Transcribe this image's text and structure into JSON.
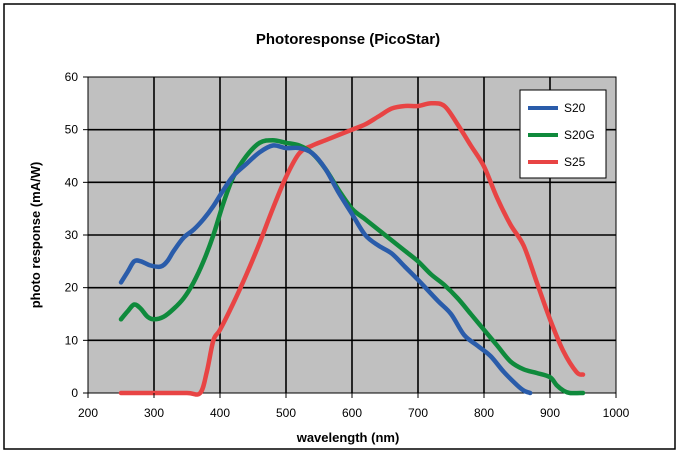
{
  "chart_data": {
    "type": "line",
    "title": "Photoresponse (PicoStar)",
    "xlabel": "wavelength (nm)",
    "ylabel": "photo response (mA/W)",
    "xlim": [
      200,
      1000
    ],
    "ylim": [
      0,
      60
    ],
    "x_ticks": [
      200,
      300,
      400,
      500,
      600,
      700,
      800,
      900,
      1000
    ],
    "y_ticks": [
      0,
      10,
      20,
      30,
      40,
      50,
      60
    ],
    "grid": true,
    "legend_position": "top-right",
    "plot_background": "#c0c0c0",
    "series": [
      {
        "name": "S20",
        "color": "#2a5caa",
        "points": [
          [
            250,
            21
          ],
          [
            260,
            23
          ],
          [
            270,
            25
          ],
          [
            280,
            25
          ],
          [
            295,
            24.2
          ],
          [
            310,
            24
          ],
          [
            320,
            25
          ],
          [
            330,
            27
          ],
          [
            345,
            29.5
          ],
          [
            360,
            31
          ],
          [
            375,
            33
          ],
          [
            390,
            35.5
          ],
          [
            405,
            38.5
          ],
          [
            420,
            41.2
          ],
          [
            440,
            43.5
          ],
          [
            460,
            45.7
          ],
          [
            480,
            47
          ],
          [
            500,
            46.5
          ],
          [
            520,
            46.5
          ],
          [
            540,
            45.5
          ],
          [
            560,
            42.5
          ],
          [
            580,
            38
          ],
          [
            600,
            34
          ],
          [
            620,
            30
          ],
          [
            640,
            28
          ],
          [
            660,
            26.5
          ],
          [
            680,
            24
          ],
          [
            700,
            21.5
          ],
          [
            730,
            17.5
          ],
          [
            750,
            15
          ],
          [
            770,
            11
          ],
          [
            790,
            9
          ],
          [
            810,
            7
          ],
          [
            830,
            4
          ],
          [
            850,
            1.5
          ],
          [
            860,
            0.5
          ],
          [
            870,
            0
          ]
        ]
      },
      {
        "name": "S20G",
        "color": "#0f8a3c",
        "points": [
          [
            250,
            14
          ],
          [
            260,
            15.5
          ],
          [
            270,
            16.8
          ],
          [
            280,
            16
          ],
          [
            290,
            14.5
          ],
          [
            300,
            14
          ],
          [
            315,
            14.5
          ],
          [
            330,
            16
          ],
          [
            345,
            18
          ],
          [
            360,
            21
          ],
          [
            375,
            25
          ],
          [
            390,
            30
          ],
          [
            405,
            36
          ],
          [
            420,
            41
          ],
          [
            440,
            45
          ],
          [
            460,
            47.5
          ],
          [
            480,
            48
          ],
          [
            500,
            47.5
          ],
          [
            520,
            47
          ],
          [
            540,
            45.5
          ],
          [
            560,
            42.5
          ],
          [
            580,
            38.5
          ],
          [
            600,
            35
          ],
          [
            620,
            33
          ],
          [
            640,
            31
          ],
          [
            660,
            29
          ],
          [
            680,
            27
          ],
          [
            700,
            25
          ],
          [
            720,
            22.5
          ],
          [
            740,
            20.5
          ],
          [
            760,
            18
          ],
          [
            780,
            15
          ],
          [
            800,
            12
          ],
          [
            820,
            9
          ],
          [
            840,
            6
          ],
          [
            860,
            4.5
          ],
          [
            880,
            3.8
          ],
          [
            900,
            3
          ],
          [
            910,
            1.5
          ],
          [
            920,
            0.5
          ],
          [
            930,
            0
          ],
          [
            950,
            0
          ]
        ]
      },
      {
        "name": "S25",
        "color": "#e84444",
        "points": [
          [
            250,
            0
          ],
          [
            300,
            0
          ],
          [
            350,
            0
          ],
          [
            370,
            0
          ],
          [
            380,
            4
          ],
          [
            390,
            10
          ],
          [
            400,
            12
          ],
          [
            420,
            17
          ],
          [
            440,
            22.5
          ],
          [
            460,
            28.5
          ],
          [
            480,
            35
          ],
          [
            500,
            41
          ],
          [
            520,
            45.5
          ],
          [
            540,
            47
          ],
          [
            560,
            48
          ],
          [
            580,
            49
          ],
          [
            600,
            50
          ],
          [
            620,
            51
          ],
          [
            640,
            52.5
          ],
          [
            660,
            54
          ],
          [
            680,
            54.5
          ],
          [
            700,
            54.5
          ],
          [
            720,
            55
          ],
          [
            740,
            54.5
          ],
          [
            760,
            51
          ],
          [
            780,
            47
          ],
          [
            800,
            43
          ],
          [
            820,
            37
          ],
          [
            840,
            32
          ],
          [
            860,
            28
          ],
          [
            880,
            21
          ],
          [
            900,
            14
          ],
          [
            920,
            8
          ],
          [
            940,
            4
          ],
          [
            950,
            3.5
          ]
        ]
      }
    ]
  }
}
